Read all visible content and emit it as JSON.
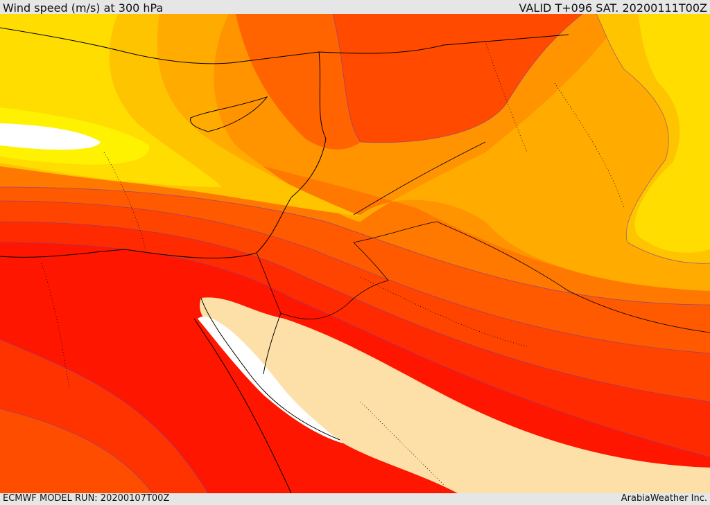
{
  "header": {
    "title": "Wind speed (m/s) at 300 hPa",
    "valid": "VALID T+096 SAT. 20200111T00Z"
  },
  "footer": {
    "model_run": "ECMWF MODEL RUN: 20200107T00Z",
    "credit": "ArabiaWeather Inc."
  },
  "palette": {
    "cream": "#fde0a8",
    "red_strong": "#ff1600",
    "red": "#ff2a00",
    "red_orange": "#ff4a00",
    "orange_deep": "#ff6a00",
    "orange": "#ff8a00",
    "orange_light": "#ffa800",
    "amber": "#ffc400",
    "yellow": "#ffe000",
    "yellow_bright": "#fff000",
    "white": "#ffffff"
  }
}
